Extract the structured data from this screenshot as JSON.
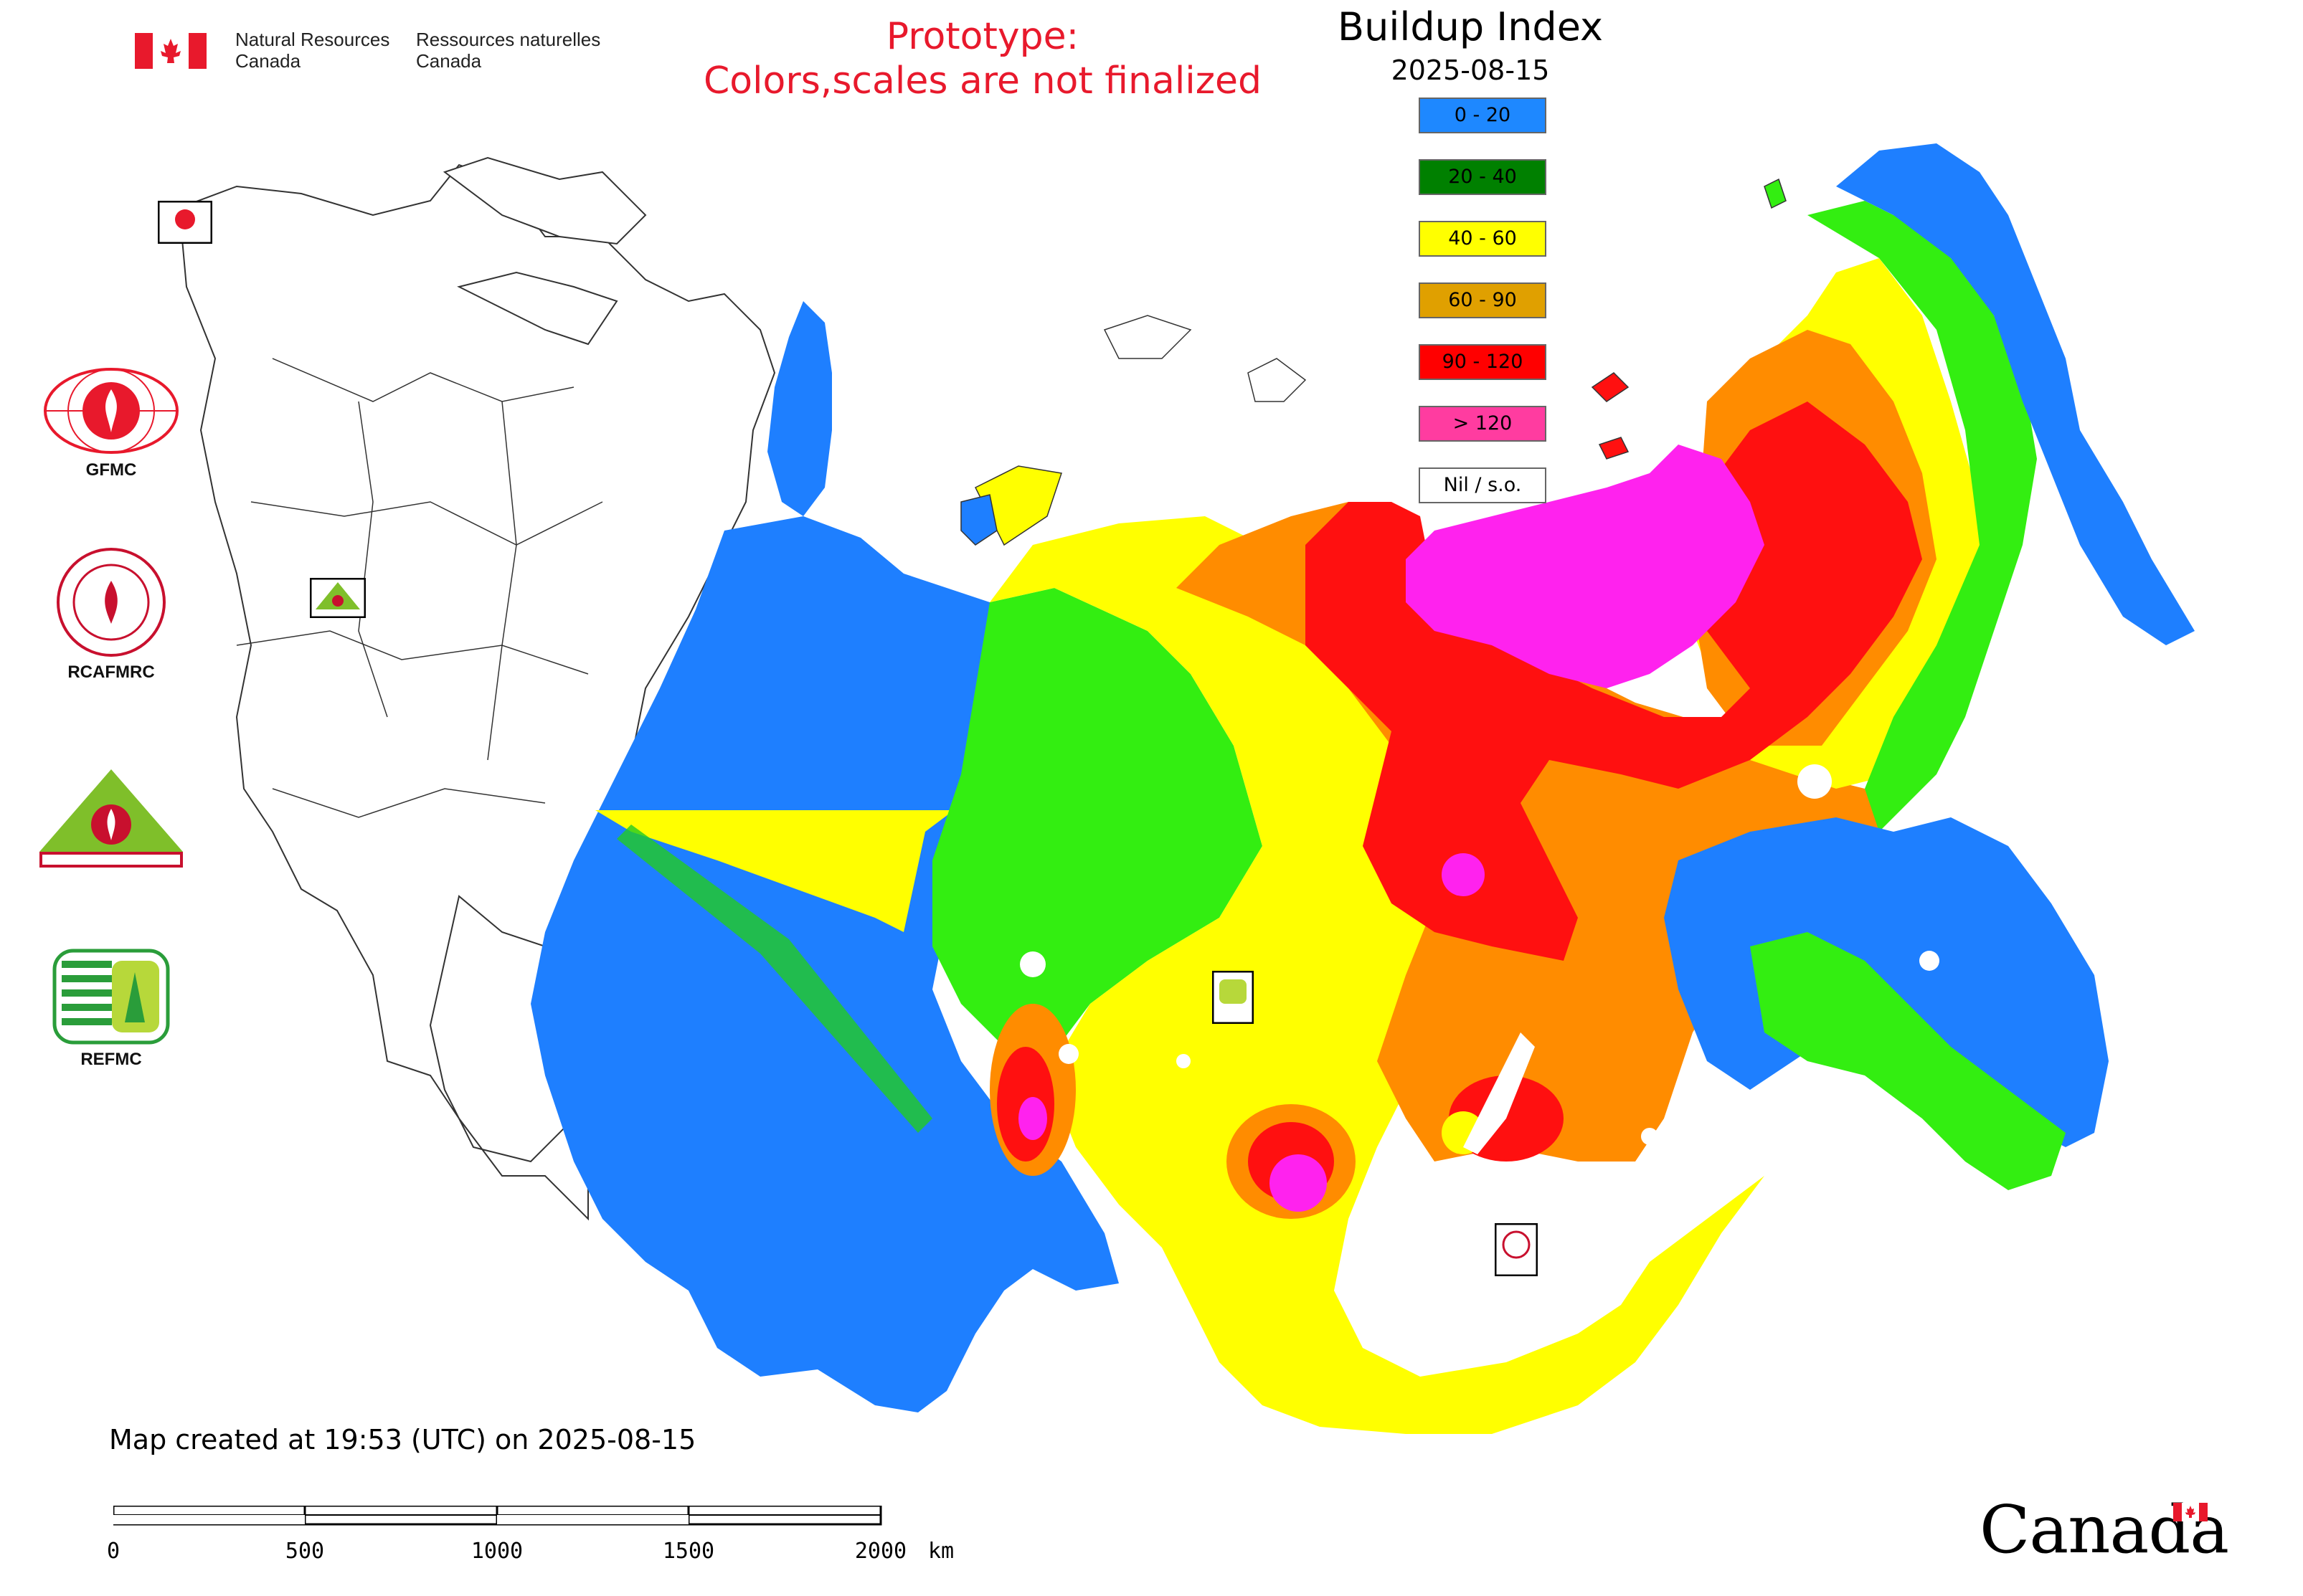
{
  "header": {
    "nrcan_en": "Natural Resources\nCanada",
    "nrcan_fr": "Ressources naturelles\nCanada",
    "prototype_line1": "Prototype:",
    "prototype_line2": "Colors,scales are not finalized"
  },
  "legend": {
    "title": "Buildup Index",
    "date": "2025-08-15",
    "items": [
      {
        "label": "0 - 20",
        "color": "#1e88ff"
      },
      {
        "label": "20 - 40",
        "color": "#008000"
      },
      {
        "label": "40 - 60",
        "color": "#ffff00"
      },
      {
        "label": "60 - 90",
        "color": "#e0a000"
      },
      {
        "label": "90 - 120",
        "color": "#ff0000"
      },
      {
        "label": "> 120",
        "color": "#ff3ca0"
      },
      {
        "label": "Nil / s.o.",
        "color": "#ffffff"
      }
    ]
  },
  "agencies": [
    {
      "label": "GFMC",
      "icon": "gfmc-logo-icon"
    },
    {
      "label": "RCAFMRC",
      "icon": "rcafmrc-logo-icon"
    },
    {
      "label": "",
      "icon": "reefmc-logo-icon"
    },
    {
      "label": "REFMC",
      "icon": "refmc-logo-icon"
    }
  ],
  "map_colors": {
    "blue": "#1e7fff",
    "green": "#33ee11",
    "yellow": "#ffff00",
    "orange": "#ff8c00",
    "red": "#ff1010",
    "magenta": "#ff22ee",
    "white": "#ffffff"
  },
  "footer": {
    "created": "Map created at 19:53 (UTC) on 2025-08-15",
    "scale_ticks": [
      "0",
      "500",
      "1000",
      "1500",
      "2000"
    ],
    "scale_unit": "km",
    "wordmark": "Canada"
  }
}
